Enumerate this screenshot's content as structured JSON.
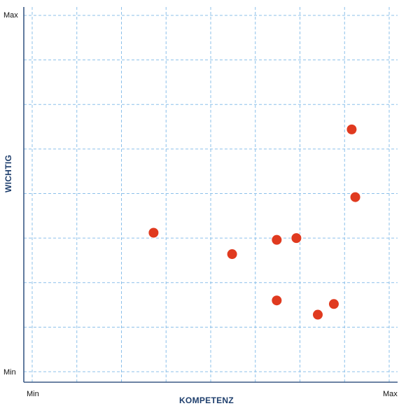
{
  "chart_data": {
    "type": "scatter",
    "title": "",
    "xlabel": "KOMPETENZ",
    "ylabel": "WICHTIG",
    "xlim": [
      0,
      100
    ],
    "ylim": [
      0,
      100
    ],
    "x_tick_labels": {
      "min": "Min",
      "max": "Max"
    },
    "y_tick_labels": {
      "min": "Min",
      "max": "Max"
    },
    "grid": true,
    "grid_divisions": 8,
    "legend": "none",
    "point_color": "#e03a1f",
    "grid_color": "#8cc0ea",
    "axis_color": "#3b5a86",
    "title_color": "#1f3f6d",
    "series": [
      {
        "points": [
          {
            "x": 34,
            "y": 39
          },
          {
            "x": 56,
            "y": 33
          },
          {
            "x": 68.5,
            "y": 37
          },
          {
            "x": 74,
            "y": 37.5
          },
          {
            "x": 68.5,
            "y": 20
          },
          {
            "x": 80,
            "y": 16
          },
          {
            "x": 84.5,
            "y": 19
          },
          {
            "x": 89.5,
            "y": 68
          },
          {
            "x": 90.5,
            "y": 49
          }
        ]
      }
    ]
  }
}
